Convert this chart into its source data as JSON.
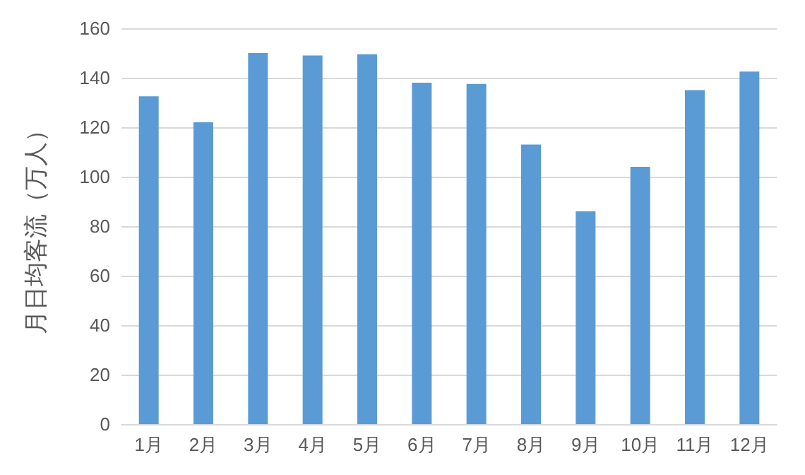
{
  "chart_data": {
    "type": "bar",
    "ylabel": "月日均客流（万人）",
    "categories": [
      "1月",
      "2月",
      "3月",
      "4月",
      "5月",
      "6月",
      "7月",
      "8月",
      "9月",
      "10月",
      "11月",
      "12月"
    ],
    "values": [
      132.5,
      122,
      150,
      149,
      149.5,
      138,
      137.5,
      113,
      86,
      104,
      135,
      142.5
    ],
    "color": "#5b9bd5",
    "ylim": [
      0,
      160
    ],
    "yticks": [
      0,
      20,
      40,
      60,
      80,
      100,
      120,
      140,
      160
    ],
    "grid": "y"
  }
}
